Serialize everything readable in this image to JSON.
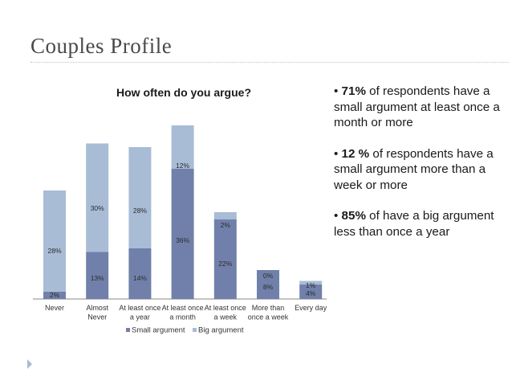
{
  "slide": {
    "title": "Couples Profile",
    "bullets": [
      {
        "prefix": "• ",
        "highlight": "71%",
        "text": " of respondents have a small argument at least once a month or more"
      },
      {
        "prefix": "• ",
        "highlight": "12 %",
        "text": " of respondents have a small argument more than a week or more"
      },
      {
        "prefix": "•  ",
        "highlight": "85%",
        "text": " of have a big argument less than once a year"
      }
    ]
  },
  "colors": {
    "small": "#7180aa",
    "big": "#a9bcd5",
    "accent": "#a9bcd5"
  },
  "chart_data": {
    "type": "bar",
    "stacked": true,
    "title": "How often do you argue?",
    "categories": [
      [
        "Never"
      ],
      [
        "Almost",
        "Never"
      ],
      [
        "At least once",
        "a year"
      ],
      [
        "At least once",
        "a month"
      ],
      [
        "At least once",
        "a week"
      ],
      [
        "More than",
        "once a week"
      ],
      [
        "Every day"
      ]
    ],
    "series": [
      {
        "name": "Small argument",
        "values": [
          2,
          13,
          14,
          36,
          22,
          8,
          4
        ],
        "labels": [
          "2%",
          "13%",
          "14%",
          "36%",
          "22%",
          "8%",
          "4%"
        ]
      },
      {
        "name": "Big argument",
        "values": [
          28,
          30,
          28,
          12,
          2,
          0,
          1
        ],
        "labels": [
          "28%",
          "30%",
          "28%",
          "12%",
          "2%",
          "0%",
          "1%"
        ]
      }
    ],
    "ylim": [
      0,
      50
    ],
    "grid": false,
    "legend": "bottom"
  }
}
